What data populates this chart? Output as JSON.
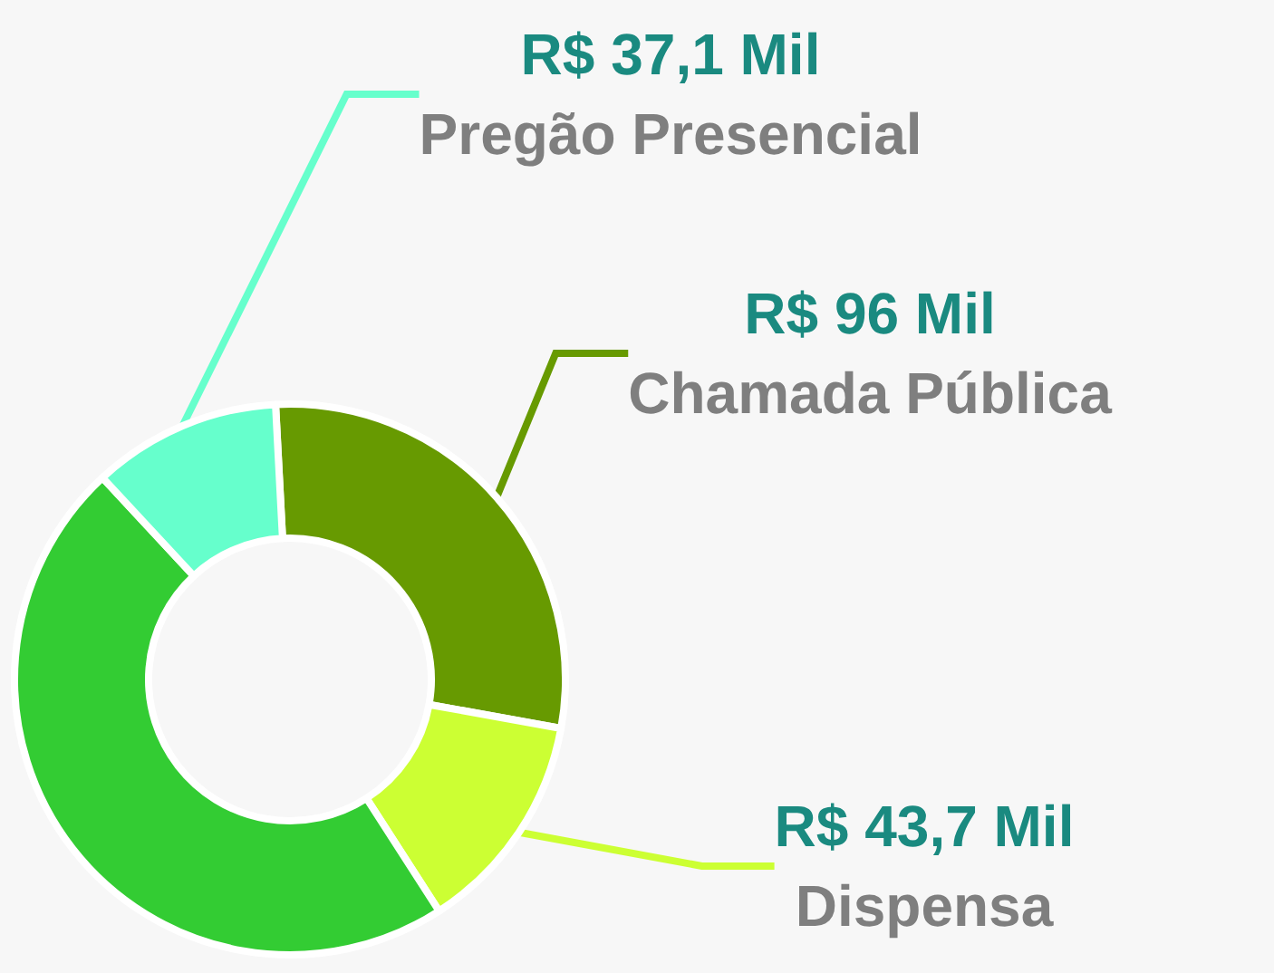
{
  "chart_data": {
    "type": "donut",
    "categories": [
      "Chamada Pública",
      "Dispensa",
      null,
      "Pregão Presencial"
    ],
    "values": [
      96,
      43.7,
      158,
      37.1
    ],
    "value_labels": [
      "R$ 96 Mil",
      "R$ 43,7 Mil",
      null,
      "R$ 37,1 Mil"
    ],
    "colors": [
      "#679a01",
      "#ccff33",
      "#33cc33",
      "#66ffcc"
    ]
  }
}
